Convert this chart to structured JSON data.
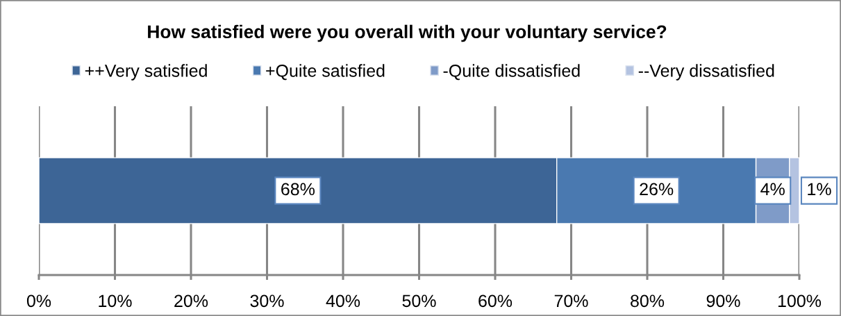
{
  "chart_data": {
    "type": "bar",
    "orientation": "horizontal",
    "stacked": true,
    "title": "How satisfied were you overall with your voluntary service?",
    "categories": [
      null
    ],
    "series": [
      {
        "name": "++Very satisfied",
        "color": "#3d6596",
        "values": [
          68.1
        ],
        "value_labels": [
          "68%"
        ]
      },
      {
        "name": "+Quite satisfied",
        "color": "#4a79b0",
        "values": [
          26.2
        ],
        "value_labels": [
          "26%"
        ]
      },
      {
        "name": "-Quite dissatisfied",
        "color": "#7f9bc8",
        "values": [
          4.4
        ],
        "value_labels": [
          "4%"
        ]
      },
      {
        "name": "--Very dissatisfied",
        "color": "#b4c3e1",
        "values": [
          1.3
        ],
        "value_labels": [
          "1%"
        ]
      }
    ],
    "xlim": [
      0,
      100
    ],
    "xticks": [
      {
        "value": 0,
        "label": "0%"
      },
      {
        "value": 10,
        "label": "10%"
      },
      {
        "value": 20,
        "label": "20%"
      },
      {
        "value": 30,
        "label": "30%"
      },
      {
        "value": 40,
        "label": "40%"
      },
      {
        "value": 50,
        "label": "50%"
      },
      {
        "value": 60,
        "label": "60%"
      },
      {
        "value": 70,
        "label": "70%"
      },
      {
        "value": 80,
        "label": "80%"
      },
      {
        "value": 90,
        "label": "90%"
      },
      {
        "value": 100,
        "label": "100%"
      }
    ],
    "grid": "x",
    "legend": "top"
  }
}
